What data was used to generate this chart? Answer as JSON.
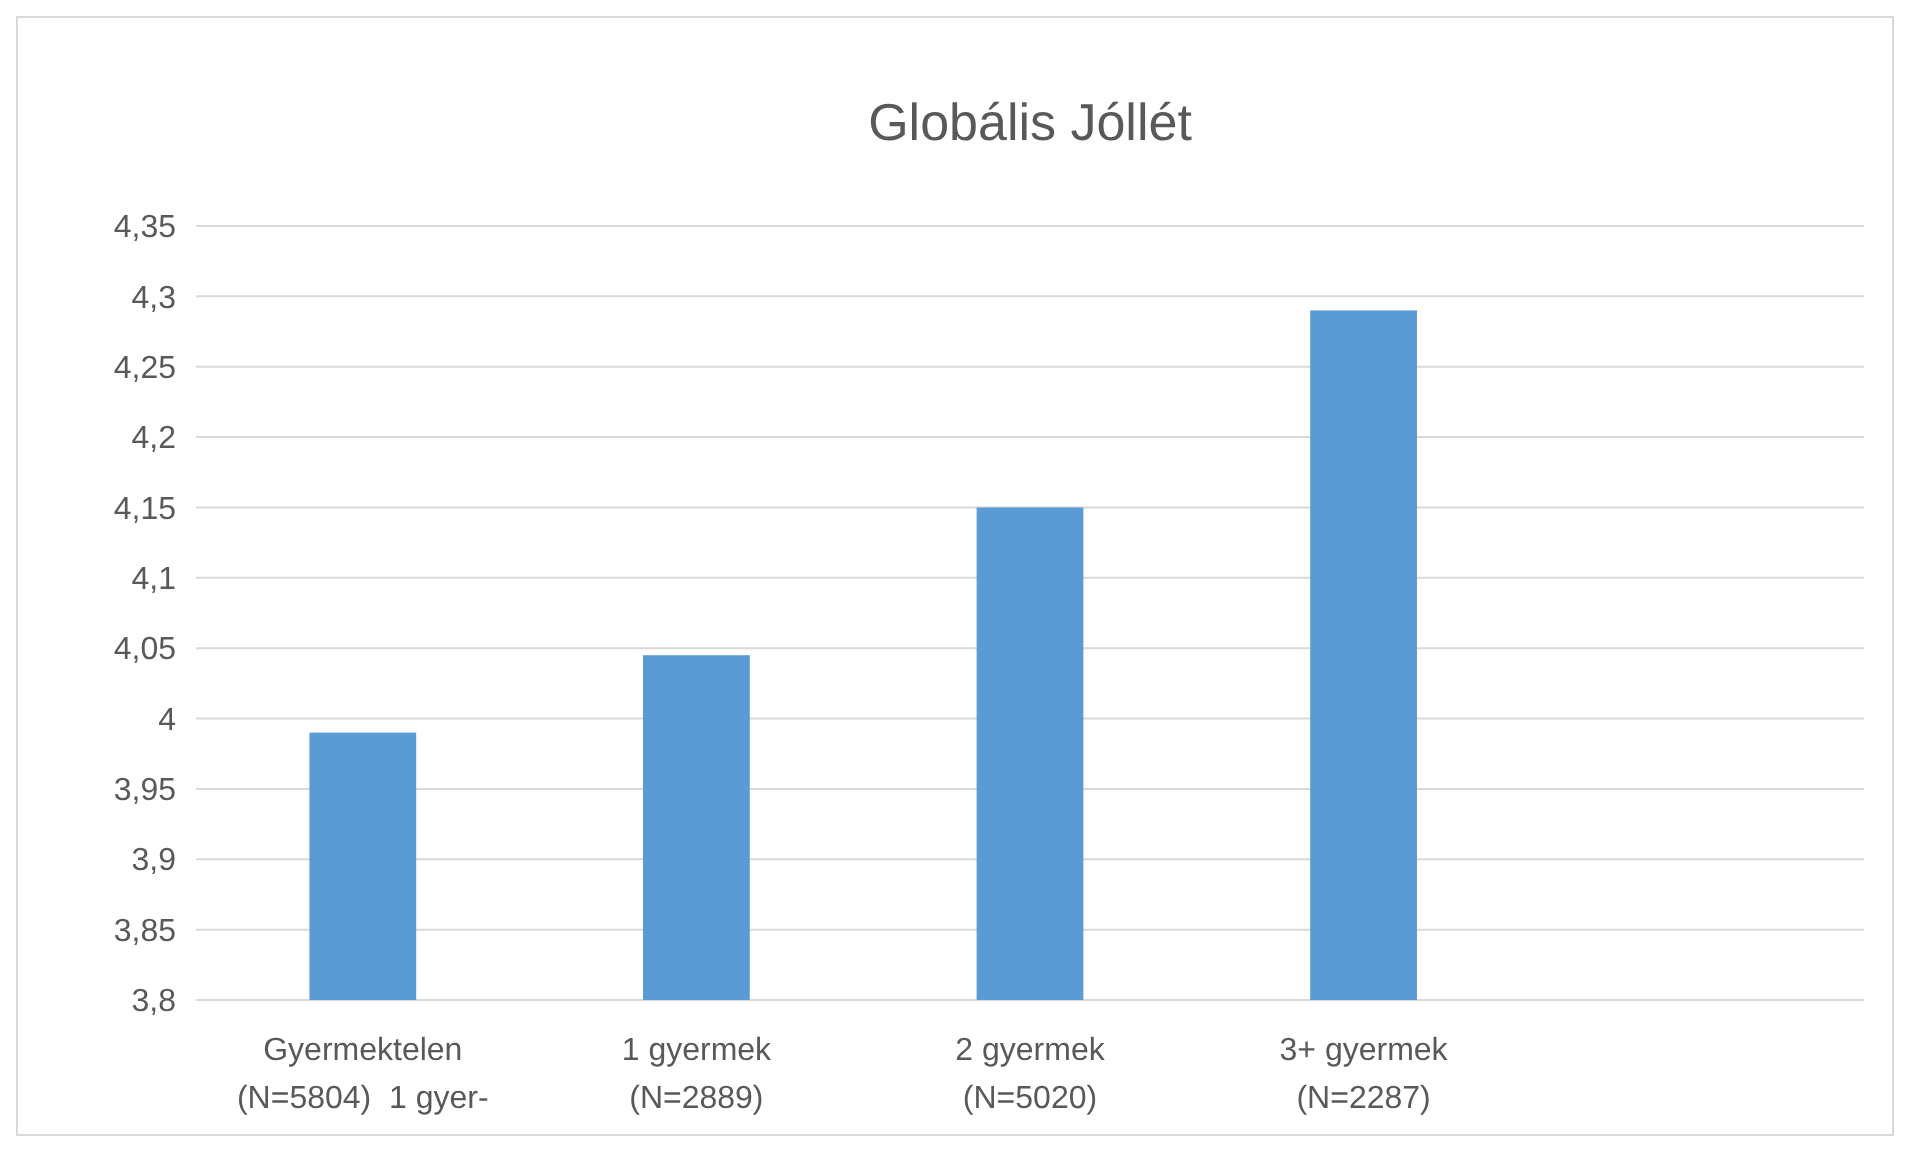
{
  "chart_data": {
    "type": "bar",
    "title": "Globális Jóllét",
    "categories": [
      "Gyermektelen\n(N=5804)  1 gyer-",
      "1 gyermek\n(N=2889)",
      "2 gyermek\n(N=5020)",
      "3+ gyermek\n(N=2287)",
      null
    ],
    "values": [
      3.99,
      4.045,
      4.15,
      4.29,
      null
    ],
    "color": "#5b9bd5",
    "ylim": [
      3.8,
      4.35
    ],
    "yticks": [
      {
        "value": 3.8,
        "label": "3,8"
      },
      {
        "value": 3.85,
        "label": "3,85"
      },
      {
        "value": 3.9,
        "label": "3,9"
      },
      {
        "value": 3.95,
        "label": "3,95"
      },
      4,
      {
        "value": 4.05,
        "label": "4,05"
      },
      {
        "value": 4.1,
        "label": "4,1"
      },
      {
        "value": 4.15,
        "label": "4,15"
      },
      {
        "value": 4.2,
        "label": "4,2"
      },
      {
        "value": 4.25,
        "label": "4,25"
      },
      {
        "value": 4.3,
        "label": "4,3"
      },
      {
        "value": 4.35,
        "label": "4,35"
      }
    ],
    "grid": true
  }
}
